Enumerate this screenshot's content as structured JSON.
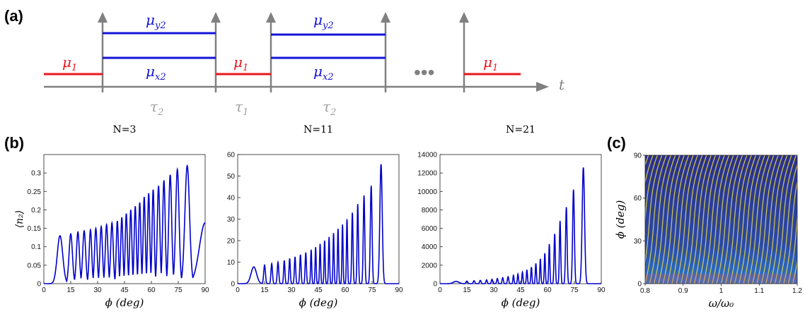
{
  "panels": {
    "a": "(a)",
    "b": "(b)",
    "c": "(c)"
  },
  "timing": {
    "mu1_base": "μ",
    "mu1_sub": "1",
    "muy2_base": "μ",
    "muy2_sub": "y2",
    "mux2_base": "μ",
    "mux2_sub": "x2",
    "tau2_base": "τ",
    "tau2_sub": "2",
    "tau1_base": "τ",
    "tau1_sub": "1",
    "t_label": "t",
    "ellipsis": "•••",
    "colors": {
      "mu1": "#e8161c",
      "mu2": "#1414d8",
      "axis": "#808080"
    }
  },
  "chart_data": [
    {
      "type": "line",
      "title": "N=3",
      "xlabel": "ϕ (deg)",
      "ylabel": "⟨n₂⟩",
      "xlim": [
        0,
        90
      ],
      "ylim": [
        0,
        0.35
      ],
      "xticks": [
        "0",
        "15",
        "30",
        "45",
        "60",
        "75",
        "90"
      ],
      "yticks": [
        "0",
        "0.05",
        "0.1",
        "0.15",
        "0.2",
        "0.25",
        "0.3"
      ],
      "color": "#0000cc",
      "peaks": [
        {
          "x": 9,
          "y": 0.13
        },
        {
          "x": 15,
          "y": 0.135
        },
        {
          "x": 19,
          "y": 0.14
        },
        {
          "x": 22.5,
          "y": 0.143
        },
        {
          "x": 26,
          "y": 0.146
        },
        {
          "x": 29,
          "y": 0.15
        },
        {
          "x": 32,
          "y": 0.155
        },
        {
          "x": 35,
          "y": 0.16
        },
        {
          "x": 38,
          "y": 0.165
        },
        {
          "x": 41,
          "y": 0.17
        },
        {
          "x": 43.5,
          "y": 0.18
        },
        {
          "x": 46,
          "y": 0.19
        },
        {
          "x": 48.5,
          "y": 0.2
        },
        {
          "x": 51,
          "y": 0.21
        },
        {
          "x": 53.5,
          "y": 0.22
        },
        {
          "x": 56,
          "y": 0.235
        },
        {
          "x": 58.5,
          "y": 0.245
        },
        {
          "x": 61,
          "y": 0.255
        },
        {
          "x": 64,
          "y": 0.265
        },
        {
          "x": 67,
          "y": 0.28
        },
        {
          "x": 70.5,
          "y": 0.295
        },
        {
          "x": 74.5,
          "y": 0.31
        },
        {
          "x": 80,
          "y": 0.32
        }
      ],
      "end_value": {
        "x": 90,
        "y": 0.165
      }
    },
    {
      "type": "line",
      "title": "N=11",
      "xlabel": "ϕ (deg)",
      "ylabel": "",
      "xlim": [
        0,
        90
      ],
      "ylim": [
        0,
        60
      ],
      "xticks": [
        "0",
        "15",
        "30",
        "45",
        "60",
        "75",
        "90"
      ],
      "yticks": [
        "0",
        "10",
        "20",
        "30",
        "40",
        "50",
        "60"
      ],
      "color": "#0000cc",
      "peaks": [
        {
          "x": 9,
          "y": 7.8
        },
        {
          "x": 15,
          "y": 8.6
        },
        {
          "x": 19,
          "y": 9.3
        },
        {
          "x": 22.5,
          "y": 10
        },
        {
          "x": 26,
          "y": 10.8
        },
        {
          "x": 29,
          "y": 11.7
        },
        {
          "x": 32,
          "y": 12.5
        },
        {
          "x": 35,
          "y": 13.5
        },
        {
          "x": 38,
          "y": 14.5
        },
        {
          "x": 41,
          "y": 15.8
        },
        {
          "x": 43.5,
          "y": 17
        },
        {
          "x": 46,
          "y": 18.5
        },
        {
          "x": 48.5,
          "y": 20
        },
        {
          "x": 51,
          "y": 21.7
        },
        {
          "x": 53.5,
          "y": 23.5
        },
        {
          "x": 56,
          "y": 25.5
        },
        {
          "x": 58.5,
          "y": 27.5
        },
        {
          "x": 61,
          "y": 30
        },
        {
          "x": 64,
          "y": 33
        },
        {
          "x": 67,
          "y": 37
        },
        {
          "x": 70.5,
          "y": 41
        },
        {
          "x": 74.5,
          "y": 45.5
        },
        {
          "x": 80,
          "y": 55.5
        }
      ]
    },
    {
      "type": "line",
      "title": "N=21",
      "xlabel": "ϕ (deg)",
      "ylabel": "",
      "xlim": [
        0,
        90
      ],
      "ylim": [
        0,
        14000
      ],
      "xticks": [
        "0",
        "15",
        "30",
        "45",
        "60",
        "75",
        "90"
      ],
      "yticks": [
        "0",
        "2000",
        "4000",
        "6000",
        "8000",
        "10000",
        "12000",
        "14000"
      ],
      "color": "#0000cc",
      "peaks": [
        {
          "x": 9,
          "y": 250
        },
        {
          "x": 15,
          "y": 280
        },
        {
          "x": 19,
          "y": 320
        },
        {
          "x": 22.5,
          "y": 360
        },
        {
          "x": 26,
          "y": 420
        },
        {
          "x": 29,
          "y": 480
        },
        {
          "x": 32,
          "y": 560
        },
        {
          "x": 35,
          "y": 650
        },
        {
          "x": 38,
          "y": 760
        },
        {
          "x": 41,
          "y": 900
        },
        {
          "x": 43.5,
          "y": 1050
        },
        {
          "x": 46,
          "y": 1250
        },
        {
          "x": 48.5,
          "y": 1500
        },
        {
          "x": 51,
          "y": 1800
        },
        {
          "x": 53.5,
          "y": 2200
        },
        {
          "x": 56,
          "y": 2700
        },
        {
          "x": 58.5,
          "y": 3300
        },
        {
          "x": 61,
          "y": 4300
        },
        {
          "x": 64,
          "y": 5400
        },
        {
          "x": 67,
          "y": 6800
        },
        {
          "x": 70.5,
          "y": 8300
        },
        {
          "x": 74.5,
          "y": 10200
        },
        {
          "x": 80,
          "y": 12600
        }
      ]
    },
    {
      "type": "heatmap",
      "title": "",
      "xlabel": "ω/ω₀",
      "ylabel": "ϕ (deg)",
      "xlim": [
        0.8,
        1.2
      ],
      "ylim": [
        0,
        90
      ],
      "xticks": [
        "0.8",
        "0.9",
        "1",
        "1.1",
        "1.2"
      ],
      "yticks": [
        "0",
        "30",
        "60",
        "90"
      ],
      "colors": {
        "background": "#2a3a9a",
        "stripe": "#e6d84c",
        "low": "#d84a6a"
      }
    }
  ]
}
